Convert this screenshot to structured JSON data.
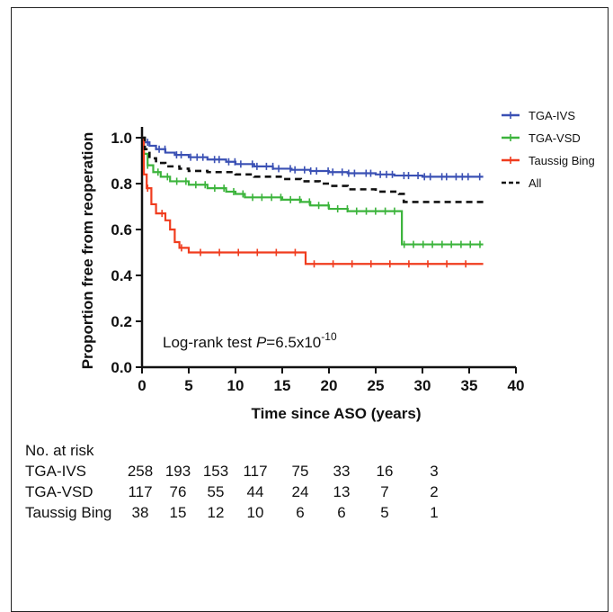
{
  "chart_data": {
    "type": "line",
    "subtype": "kaplan-meier",
    "xlabel": "Time since ASO (years)",
    "ylabel": "Proportion free from reoperation",
    "xlim": [
      0,
      40
    ],
    "ylim": [
      0,
      1.0
    ],
    "xticks": [
      0,
      5,
      10,
      15,
      20,
      25,
      30,
      35,
      40
    ],
    "yticks": [
      0.0,
      0.2,
      0.4,
      0.6,
      0.8,
      1.0
    ],
    "yticklabels": [
      "0.0",
      "0.2",
      "0.4",
      "0.6",
      "0.8",
      "1.0"
    ],
    "legend_position": "top-right",
    "annotation": {
      "prefix": "Log-rank test ",
      "p_symbol": "P",
      "value": "=6.5x10",
      "exponent": "-10"
    },
    "series": [
      {
        "name": "TGA-IVS",
        "color": "#3a50b4",
        "style": "solid",
        "points": [
          [
            0,
            1.0
          ],
          [
            0.3,
            0.98
          ],
          [
            0.8,
            0.965
          ],
          [
            1.5,
            0.95
          ],
          [
            2.5,
            0.935
          ],
          [
            3.5,
            0.925
          ],
          [
            5,
            0.915
          ],
          [
            7,
            0.905
          ],
          [
            9,
            0.895
          ],
          [
            10,
            0.885
          ],
          [
            12,
            0.875
          ],
          [
            14,
            0.865
          ],
          [
            16,
            0.86
          ],
          [
            18,
            0.855
          ],
          [
            20,
            0.85
          ],
          [
            22,
            0.845
          ],
          [
            25,
            0.84
          ],
          [
            27,
            0.835
          ],
          [
            30,
            0.83
          ],
          [
            36.5,
            0.83
          ]
        ]
      },
      {
        "name": "TGA-VSD",
        "color": "#3cb43c",
        "style": "solid",
        "points": [
          [
            0,
            1.0
          ],
          [
            0.2,
            0.93
          ],
          [
            0.6,
            0.88
          ],
          [
            1.2,
            0.85
          ],
          [
            2,
            0.83
          ],
          [
            3,
            0.81
          ],
          [
            5,
            0.795
          ],
          [
            7,
            0.78
          ],
          [
            9,
            0.765
          ],
          [
            10,
            0.755
          ],
          [
            11,
            0.74
          ],
          [
            15,
            0.73
          ],
          [
            17,
            0.72
          ],
          [
            18,
            0.705
          ],
          [
            20,
            0.69
          ],
          [
            22,
            0.68
          ],
          [
            27.8,
            0.68
          ],
          [
            27.8,
            0.535
          ],
          [
            36.5,
            0.535
          ]
        ]
      },
      {
        "name": "Taussig Bing",
        "color": "#f03c1e",
        "style": "solid",
        "points": [
          [
            0,
            1.0
          ],
          [
            0.2,
            0.84
          ],
          [
            0.5,
            0.78
          ],
          [
            1,
            0.71
          ],
          [
            1.5,
            0.67
          ],
          [
            2.5,
            0.64
          ],
          [
            3,
            0.6
          ],
          [
            3.5,
            0.545
          ],
          [
            4,
            0.52
          ],
          [
            5,
            0.5
          ],
          [
            10,
            0.5
          ],
          [
            17.5,
            0.5
          ],
          [
            17.5,
            0.45
          ],
          [
            36.5,
            0.45
          ]
        ]
      },
      {
        "name": "All",
        "color": "#111111",
        "style": "dashed",
        "points": [
          [
            0,
            1.0
          ],
          [
            0.3,
            0.95
          ],
          [
            0.8,
            0.91
          ],
          [
            1.5,
            0.89
          ],
          [
            2.5,
            0.875
          ],
          [
            4,
            0.865
          ],
          [
            5,
            0.855
          ],
          [
            7,
            0.85
          ],
          [
            10,
            0.84
          ],
          [
            12,
            0.83
          ],
          [
            15,
            0.82
          ],
          [
            17,
            0.81
          ],
          [
            19,
            0.8
          ],
          [
            20,
            0.79
          ],
          [
            22,
            0.775
          ],
          [
            25,
            0.765
          ],
          [
            27.5,
            0.755
          ],
          [
            28,
            0.72
          ],
          [
            36.5,
            0.72
          ]
        ]
      }
    ]
  },
  "risk_table": {
    "title": "No. at risk",
    "times": [
      0,
      5,
      10,
      15,
      20,
      25,
      30,
      35
    ],
    "rows": [
      {
        "label": "TGA-IVS",
        "values": [
          "258",
          "193",
          "153",
          "117",
          "75",
          "33",
          "16",
          "3"
        ]
      },
      {
        "label": "TGA-VSD",
        "values": [
          "117",
          "76",
          "55",
          "44",
          "24",
          "13",
          "7",
          "2"
        ]
      },
      {
        "label": "Taussig Bing",
        "values": [
          "38",
          "15",
          "12",
          "10",
          "6",
          "6",
          "5",
          "1"
        ]
      }
    ]
  }
}
